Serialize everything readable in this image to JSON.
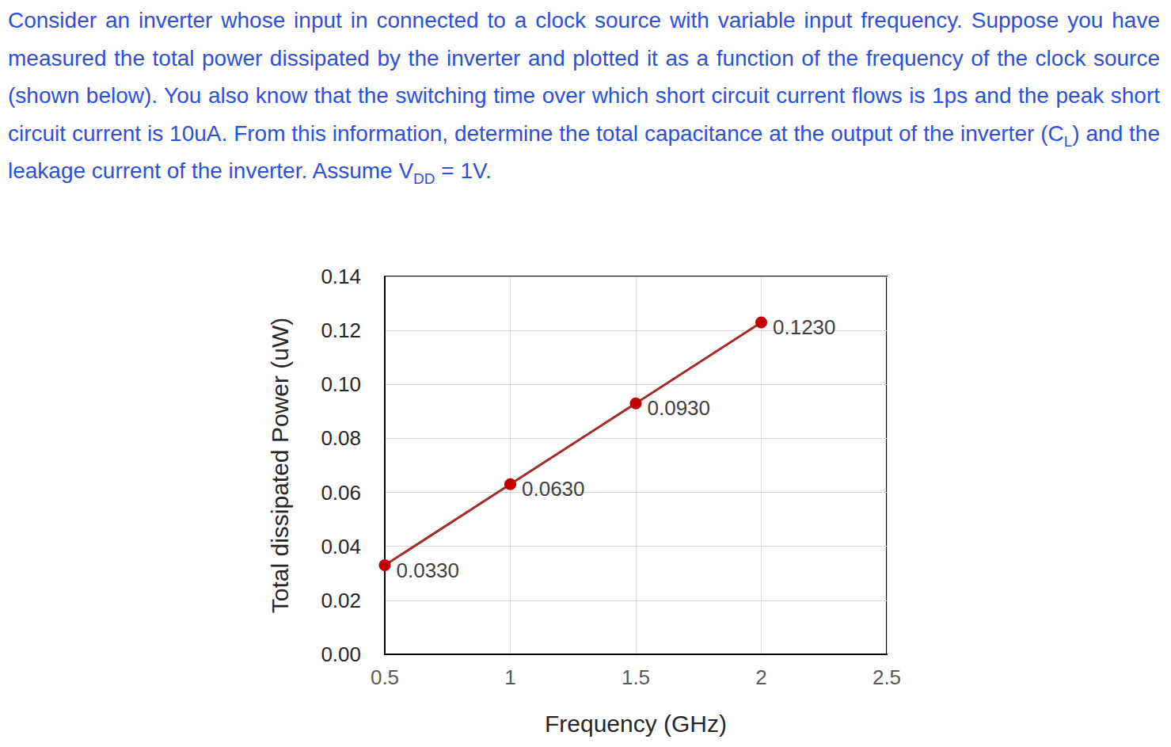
{
  "question": [
    "Consider an inverter whose input in connected to a clock source with variable input frequency. Suppose you have measured the total power dissipated by the inverter and plotted it as a function of the frequency of the clock source (shown below). You also know that the switching time over which short circuit current flows is 1ps and the peak short circuit current is 10uA. From this information, determine the total capacitance at the output of the inverter (C",
    {
      "sub": "L"
    },
    ") and the leakage current of the inverter. Assume V",
    {
      "sub": "DD"
    },
    " = 1V."
  ],
  "chart_data": {
    "type": "line",
    "xlabel": "Frequency (GHz)",
    "ylabel": "Total dissipated Power (uW)",
    "x": [
      0.5,
      1,
      1.5,
      2
    ],
    "values": [
      0.033,
      0.063,
      0.093,
      0.123
    ],
    "value_labels": [
      "0.0330",
      "0.0630",
      "0.0930",
      "0.1230"
    ],
    "color": "#c00000",
    "marker": "circle",
    "line_style": "solid",
    "xlim": [
      0.5,
      2.5
    ],
    "xticks": [
      0.5,
      1,
      1.5,
      2,
      2.5
    ],
    "ylim": [
      0,
      0.14
    ],
    "yticks": [
      {
        "value": 0,
        "label": "0.00"
      },
      {
        "value": 0.02,
        "label": "0.02"
      },
      {
        "value": 0.04,
        "label": "0.04"
      },
      {
        "value": 0.06,
        "label": "0.06"
      },
      {
        "value": 0.08,
        "label": "0.08"
      },
      {
        "value": 0.1,
        "label": "0.10"
      },
      {
        "value": 0.12,
        "label": "0.12"
      },
      {
        "value": 0.14,
        "label": "0.14"
      }
    ],
    "grid": true,
    "data_labels": true
  }
}
